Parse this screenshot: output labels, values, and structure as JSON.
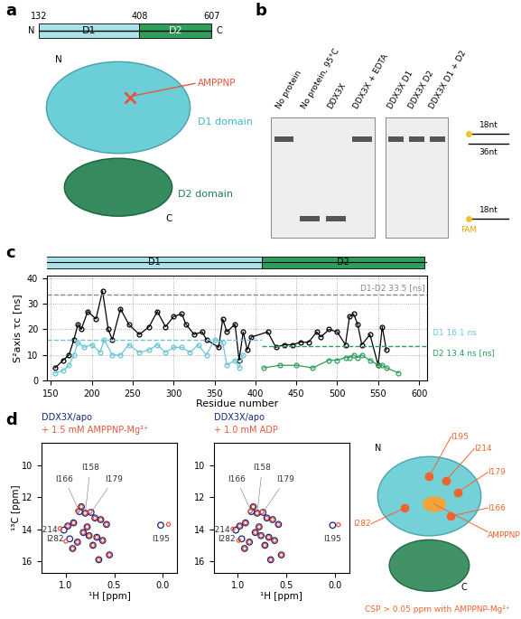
{
  "panel_labels": [
    "a",
    "b",
    "c",
    "d"
  ],
  "diagram_a": {
    "domain_bar": {
      "start": 132,
      "boundary": 408,
      "end": 607,
      "n_label": "N",
      "c_label": "C",
      "domains": [
        {
          "label": "D1",
          "color": "#a8e3ea"
        },
        {
          "label": "D2",
          "color": "#2e9e5b"
        }
      ]
    },
    "structure": {
      "n_label": "N",
      "c_label": "C",
      "d1_label": "D1 domain",
      "d2_label": "D2 domain",
      "ligand_label": "AMPPNP",
      "d1_color": "#5cc9d2",
      "d2_color": "#1f7f4c",
      "ligand_color": "#e8553e"
    }
  },
  "gel_b": {
    "lanes": [
      [
        "No protein",
        "No protein, 95°C",
        "DDX3X",
        "DDX3X + EDTA"
      ],
      [
        "DDX3X D1",
        "DDX3X D2",
        "DDX3X D1 + D2"
      ]
    ],
    "duplex_band": [
      [
        true,
        false,
        false,
        true
      ],
      [
        true,
        true,
        true
      ]
    ],
    "single_band": [
      [
        false,
        true,
        true,
        false
      ],
      [
        false,
        false,
        false
      ]
    ],
    "markers": {
      "top_strand": "18nt",
      "bottom_strand": "36nt",
      "single": "18nt",
      "label": "FAM"
    }
  },
  "chart_data": [
    {
      "type": "line",
      "xlabel": "Residue number",
      "ylabel": "S²axis τc [ns]",
      "xlim": [
        145,
        610
      ],
      "xticks": [
        150,
        200,
        250,
        300,
        350,
        400,
        450,
        500,
        550,
        600
      ],
      "ylim": [
        0,
        41
      ],
      "yticks": [
        0,
        10,
        20,
        30,
        40
      ],
      "grid": true,
      "domains": [
        {
          "label": "D1",
          "start": 132,
          "end": 408,
          "color": "#a8e3ea"
        },
        {
          "label": "D2",
          "start": 408,
          "end": 607,
          "color": "#2e9e5b"
        }
      ],
      "series": [
        {
          "color": "#000000",
          "marker": "o",
          "line_style": "solid",
          "x": [
            155,
            165,
            172,
            178,
            183,
            187,
            195,
            205,
            213,
            220,
            225,
            235,
            245,
            258,
            270,
            280,
            290,
            300,
            310,
            315,
            325,
            335,
            340,
            355,
            360,
            365,
            375,
            380,
            385,
            390,
            395,
            415,
            425,
            435,
            445,
            455,
            465,
            475,
            480,
            490,
            500,
            510,
            515,
            520,
            525,
            530,
            540,
            550,
            555,
            560
          ],
          "values": [
            5,
            8,
            10,
            16,
            22,
            20,
            27,
            24,
            35,
            20,
            16,
            28,
            22,
            18,
            21,
            27,
            21,
            25,
            26,
            22,
            18,
            19,
            16,
            13,
            24,
            19,
            22,
            8,
            19,
            12,
            17,
            19,
            13,
            14,
            14,
            15,
            15,
            19,
            17,
            20,
            19,
            14,
            25,
            26,
            22,
            14,
            18,
            6,
            21,
            12
          ]
        },
        {
          "color": "#6cc6d6",
          "marker": "o",
          "line_style": "solid",
          "x": [
            155,
            165,
            172,
            178,
            183,
            190,
            200,
            210,
            215,
            225,
            235,
            245,
            258,
            270,
            280,
            290,
            300,
            310,
            320,
            330,
            340,
            350,
            360,
            365,
            375,
            380,
            385
          ],
          "values": [
            3,
            4,
            6,
            10,
            15,
            13,
            14,
            11,
            16,
            10,
            10,
            14,
            11,
            12,
            14,
            11,
            13,
            13,
            11,
            14,
            10,
            16,
            15,
            6,
            8,
            5,
            10
          ]
        },
        {
          "color": "#2e9e5b",
          "marker": "o",
          "line_style": "solid",
          "x": [
            410,
            430,
            450,
            470,
            490,
            500,
            510,
            515,
            520,
            525,
            530,
            540,
            550,
            555,
            560,
            575
          ],
          "values": [
            5,
            6,
            6,
            5,
            8,
            8,
            9,
            9,
            10,
            9,
            10,
            8,
            6,
            6,
            5,
            3
          ]
        }
      ],
      "reference_lines": [
        {
          "label": "D1-D2 33.5 [ns]",
          "value": 33.5,
          "color": "#888888",
          "x": [
            145,
            610
          ]
        },
        {
          "label": "D1 16.1 ns",
          "value": 16.1,
          "color": "#6cc6d6",
          "x": [
            145,
            408
          ]
        },
        {
          "label": "D2 13.4 ns [ns]",
          "value": 13.4,
          "color": "#2e9e5b",
          "x": [
            408,
            610
          ]
        }
      ]
    },
    {
      "type": "scatter",
      "xlabel": "¹H [ppm]",
      "ylabel": "¹³C [ppm]",
      "xlim": [
        1.25,
        -0.15
      ],
      "xticks": [
        1.0,
        0.5,
        0.0
      ],
      "ylim": [
        16.7,
        8.6
      ],
      "yticks": [
        10,
        12,
        14,
        16
      ],
      "series": [
        {
          "name": "DDX3X/apo",
          "color": "#1a237e",
          "marker": "o",
          "x": [
            0.86,
            0.8,
            0.74,
            0.7,
            0.64,
            0.92,
            0.98,
            1.02,
            0.82,
            0.76,
            0.68,
            0.58,
            0.88,
            0.93,
            0.72,
            0.62,
            0.02,
            0.78,
            0.84,
            0.96,
            0.55,
            0.66
          ],
          "values": [
            12.9,
            13.0,
            12.95,
            13.3,
            13.4,
            13.6,
            13.8,
            14.05,
            14.2,
            14.4,
            14.5,
            13.7,
            14.8,
            15.2,
            15.0,
            14.7,
            13.75,
            13.85,
            12.6,
            14.6,
            15.6,
            15.9
          ]
        },
        {
          "name": "+ 1.5 mM AMPPNP-Mg²⁺",
          "color": "#e8553e",
          "marker": "o",
          "x": [
            0.88,
            0.8,
            0.75,
            0.7,
            0.64,
            0.92,
            0.98,
            1.06,
            0.82,
            0.76,
            0.68,
            0.58,
            0.88,
            0.93,
            0.72,
            0.62,
            -0.06,
            0.78,
            0.84,
            1.0,
            0.55,
            0.66
          ],
          "values": [
            12.85,
            13.0,
            12.9,
            13.3,
            13.4,
            13.6,
            13.8,
            13.95,
            14.2,
            14.4,
            14.5,
            13.7,
            14.8,
            15.2,
            15.0,
            14.7,
            13.7,
            13.85,
            12.6,
            14.75,
            15.6,
            15.9
          ]
        }
      ],
      "annotations": [
        {
          "text": "I166",
          "x": 0.86,
          "y": 12.9
        },
        {
          "text": "I158",
          "x": 0.8,
          "y": 13.0
        },
        {
          "text": "I179",
          "x": 0.74,
          "y": 12.95
        },
        {
          "text": "I214",
          "x": 1.02,
          "y": 14.05
        },
        {
          "text": "I282",
          "x": 0.96,
          "y": 14.6
        },
        {
          "text": "I195",
          "x": 0.02,
          "y": 13.75
        }
      ]
    },
    {
      "type": "scatter",
      "xlabel": "¹H [ppm]",
      "xlim": [
        1.25,
        -0.15
      ],
      "xticks": [
        1.0,
        0.5,
        0.0
      ],
      "ylim": [
        16.7,
        8.6
      ],
      "yticks": [
        10,
        12,
        14,
        16
      ],
      "series": [
        {
          "name": "DDX3X/apo",
          "color": "#1a237e",
          "marker": "o",
          "x": [
            0.86,
            0.8,
            0.74,
            0.7,
            0.64,
            0.92,
            0.98,
            1.02,
            0.82,
            0.76,
            0.68,
            0.58,
            0.88,
            0.93,
            0.72,
            0.62,
            0.02,
            0.78,
            0.84,
            0.96,
            0.55,
            0.66
          ],
          "values": [
            12.9,
            13.0,
            12.95,
            13.3,
            13.4,
            13.6,
            13.8,
            14.05,
            14.2,
            14.4,
            14.5,
            13.7,
            14.8,
            15.2,
            15.0,
            14.7,
            13.75,
            13.85,
            12.6,
            14.6,
            15.6,
            15.9
          ]
        },
        {
          "name": "+ 1.0 mM ADP",
          "color": "#e8553e",
          "marker": "o",
          "x": [
            0.87,
            0.8,
            0.75,
            0.7,
            0.64,
            0.92,
            0.98,
            1.05,
            0.82,
            0.76,
            0.68,
            0.58,
            0.88,
            0.93,
            0.72,
            0.62,
            -0.04,
            0.78,
            0.84,
            0.99,
            0.55,
            0.66
          ],
          "values": [
            12.87,
            13.0,
            12.92,
            13.3,
            13.4,
            13.6,
            13.8,
            13.98,
            14.2,
            14.4,
            14.5,
            13.7,
            14.8,
            15.2,
            15.0,
            14.7,
            13.72,
            13.85,
            12.6,
            14.7,
            15.6,
            15.9
          ]
        }
      ],
      "annotations": [
        {
          "text": "I166",
          "x": 0.86,
          "y": 12.9
        },
        {
          "text": "I158",
          "x": 0.8,
          "y": 13.0
        },
        {
          "text": "I179",
          "x": 0.74,
          "y": 12.95
        },
        {
          "text": "I214",
          "x": 1.02,
          "y": 14.05
        },
        {
          "text": "I282",
          "x": 0.96,
          "y": 14.6
        },
        {
          "text": "I195",
          "x": 0.02,
          "y": 13.75
        }
      ]
    }
  ],
  "structure_d": {
    "n_label": "N",
    "c_label": "C",
    "residues": [
      "I195",
      "I214",
      "I179",
      "I166",
      "I282"
    ],
    "ligand_label": "AMPPNP",
    "caption": "CSP > 0.05 ppm with AMPPNP-Mg²⁺",
    "d1_color": "#5cc9d2",
    "d2_color": "#1f7f4c",
    "residue_color": "#f0642d",
    "ligand_color": "#f0a43a"
  }
}
